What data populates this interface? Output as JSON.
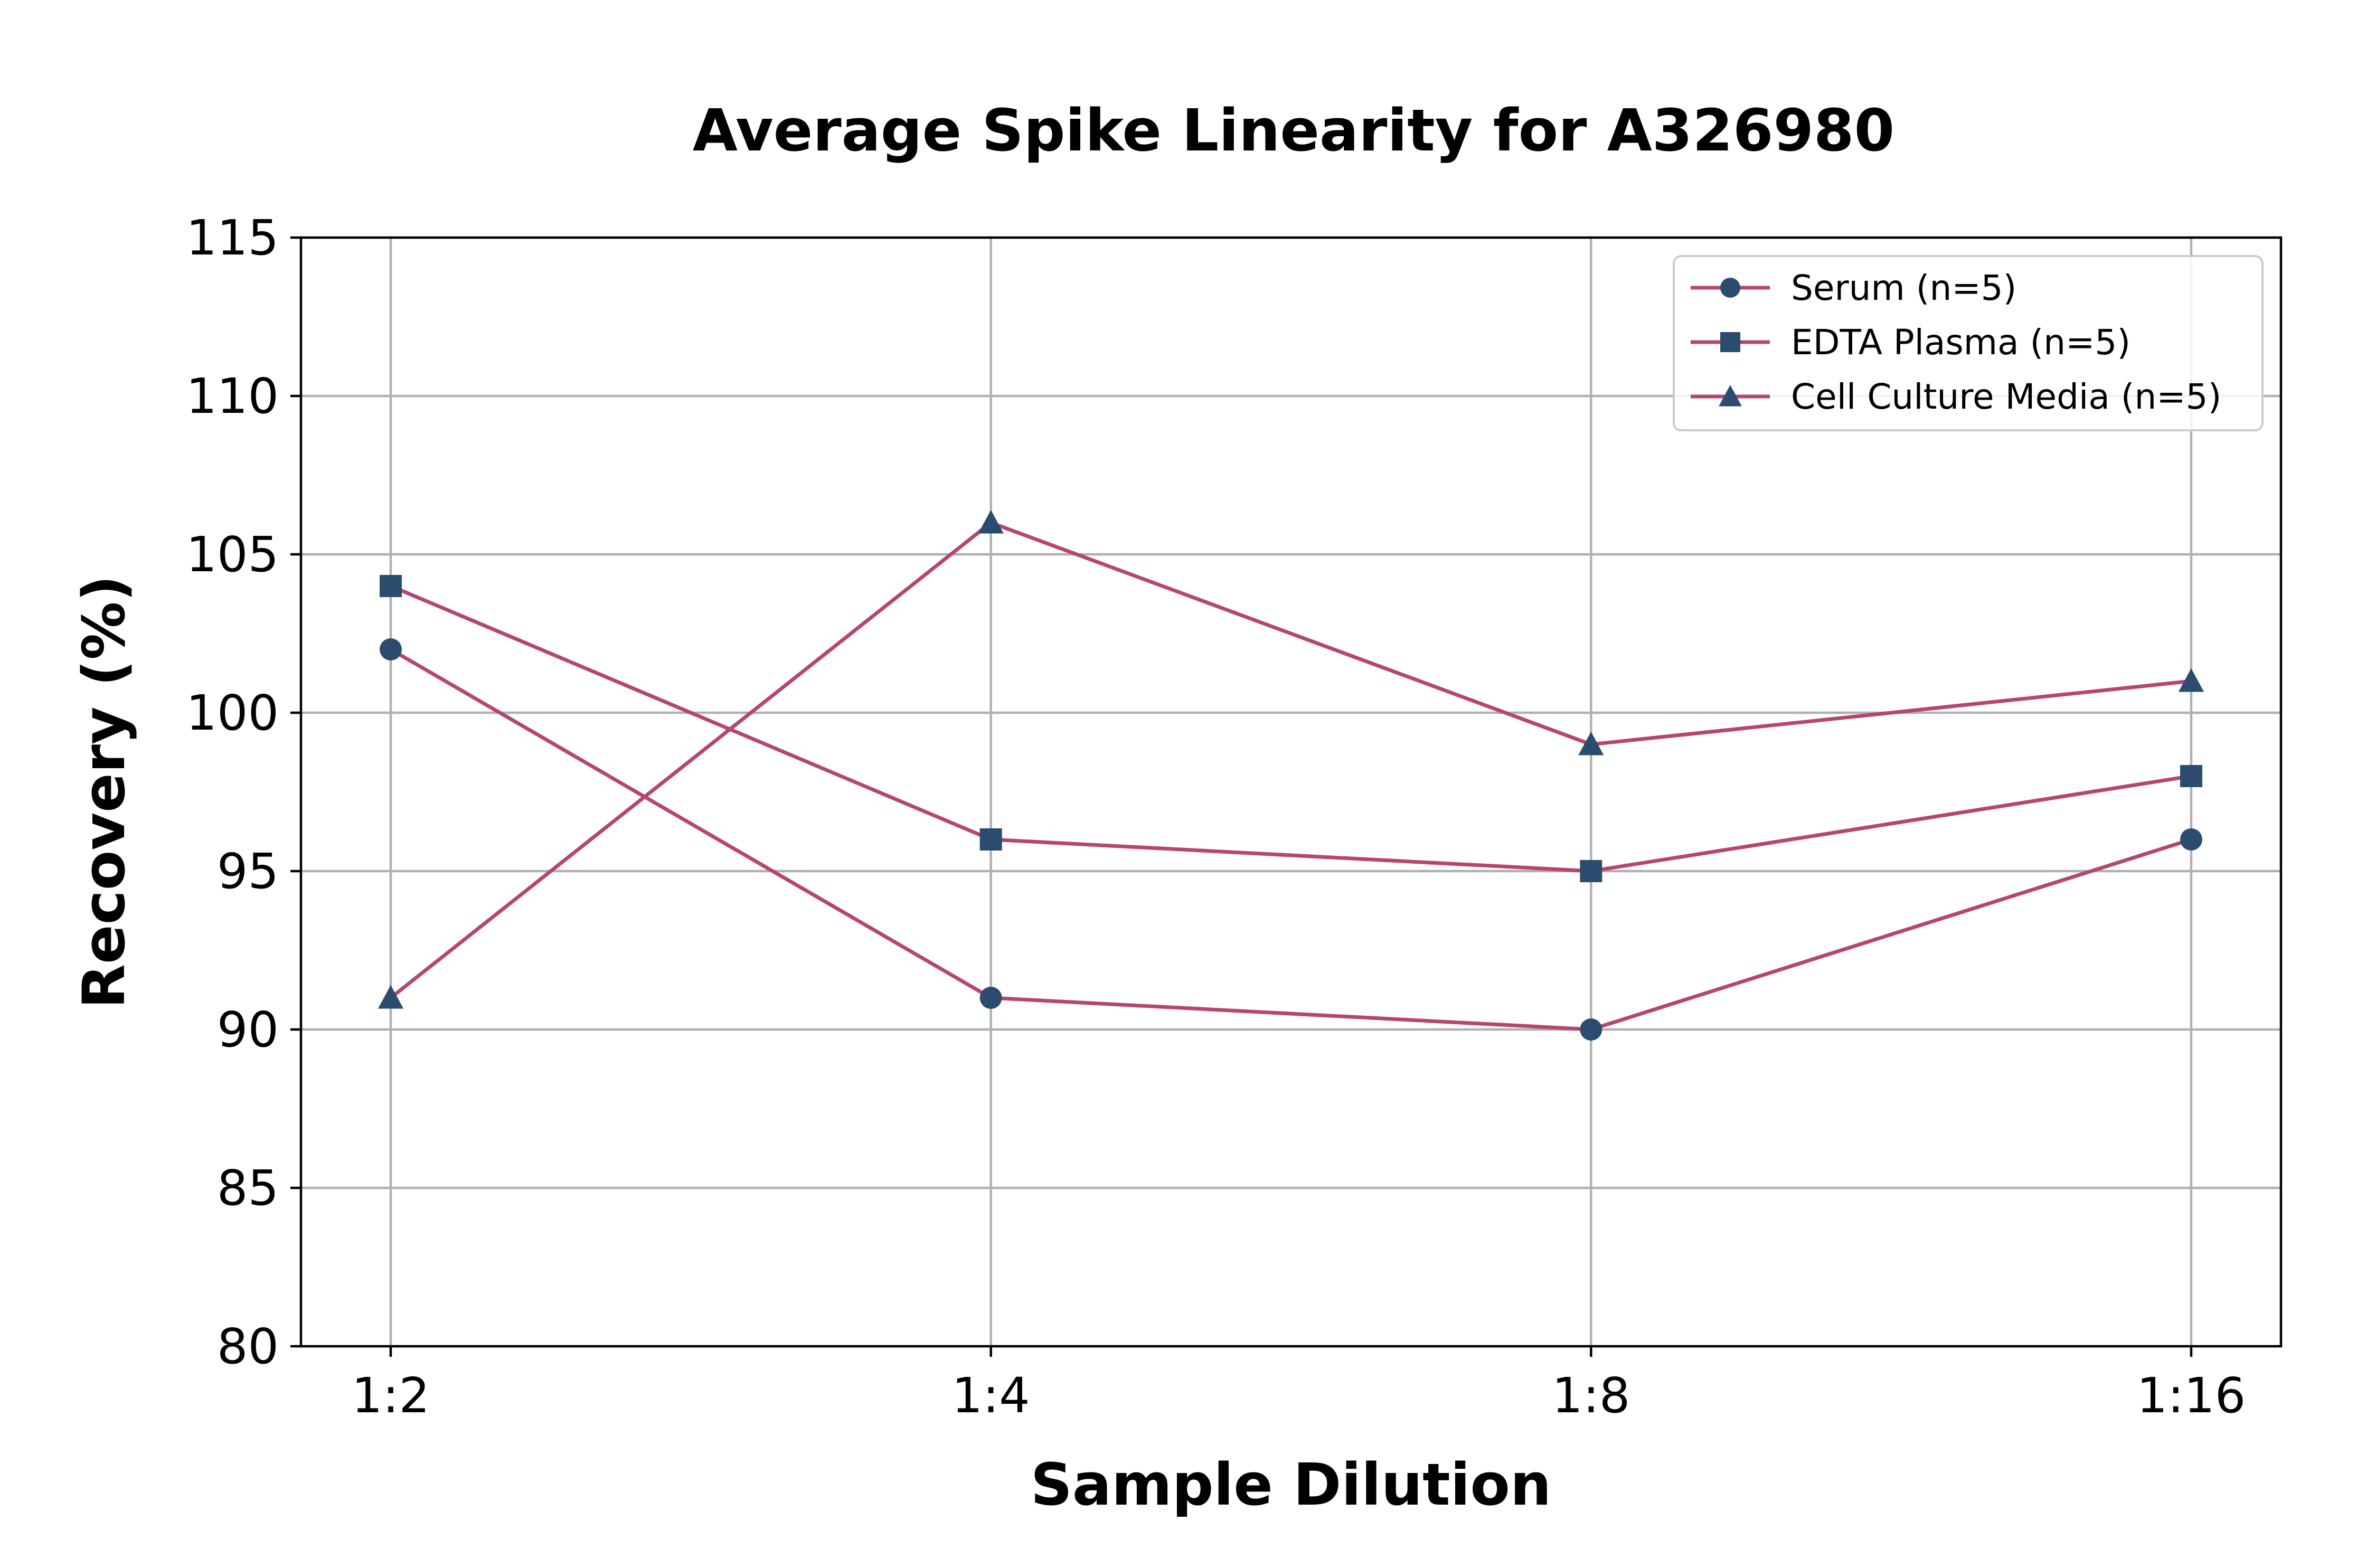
{
  "chart_data": {
    "type": "line",
    "title": "Average Spike Linearity for A326980",
    "xlabel": "Sample Dilution",
    "ylabel": "Recovery (%)",
    "categories": [
      "1:2",
      "1:4",
      "1:8",
      "1:16"
    ],
    "ylim": [
      80,
      115
    ],
    "yticks": [
      80,
      85,
      90,
      95,
      100,
      105,
      110,
      115
    ],
    "grid": true,
    "legend_position": "top-right",
    "line_color": "#b5466f",
    "marker_color": "#2b4c6f",
    "series": [
      {
        "name": "Serum (n=5)",
        "marker": "circle",
        "values": [
          102,
          91,
          90,
          96
        ]
      },
      {
        "name": "EDTA Plasma (n=5)",
        "marker": "square",
        "values": [
          104,
          96,
          95,
          98
        ]
      },
      {
        "name": "Cell Culture Media (n=5)",
        "marker": "triangle",
        "values": [
          91,
          106,
          99,
          101
        ]
      }
    ]
  }
}
